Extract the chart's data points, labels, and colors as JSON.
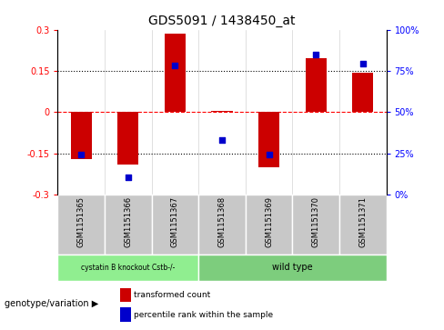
{
  "title": "GDS5091 / 1438450_at",
  "samples": [
    "GSM1151365",
    "GSM1151366",
    "GSM1151367",
    "GSM1151368",
    "GSM1151369",
    "GSM1151370",
    "GSM1151371"
  ],
  "red_bars": [
    -0.17,
    -0.19,
    0.285,
    0.005,
    -0.2,
    0.195,
    0.145
  ],
  "blue_dots_left": [
    -0.155,
    -0.235,
    0.17,
    -0.1,
    -0.155,
    0.21,
    0.175
  ],
  "ylim_left": [
    -0.3,
    0.3
  ],
  "ylim_right": [
    0,
    100
  ],
  "yticks_left": [
    -0.3,
    -0.15,
    0,
    0.15,
    0.3
  ],
  "ytick_labels_left": [
    "-0.3",
    "-0.15",
    "0",
    "0.15",
    "0.3"
  ],
  "yticks_right": [
    0,
    25,
    50,
    75,
    100
  ],
  "ytick_labels_right": [
    "0%",
    "25%",
    "50%",
    "75%",
    "100%"
  ],
  "group1_label": "cystatin B knockout Cstb-/-",
  "group2_label": "wild type",
  "group1_indices": [
    0,
    1,
    2
  ],
  "group2_indices": [
    3,
    4,
    5,
    6
  ],
  "group1_color": "#90ee90",
  "group2_color": "#7dcd7d",
  "bar_color": "#cc0000",
  "dot_color": "#0000cc",
  "bar_width": 0.45,
  "dotted_line_color": "black",
  "zero_line_color": "red",
  "bg_color": "#ffffff",
  "sample_bg_color": "#c8c8c8",
  "legend_red_label": "transformed count",
  "legend_blue_label": "percentile rank within the sample",
  "genotype_label": "genotype/variation"
}
